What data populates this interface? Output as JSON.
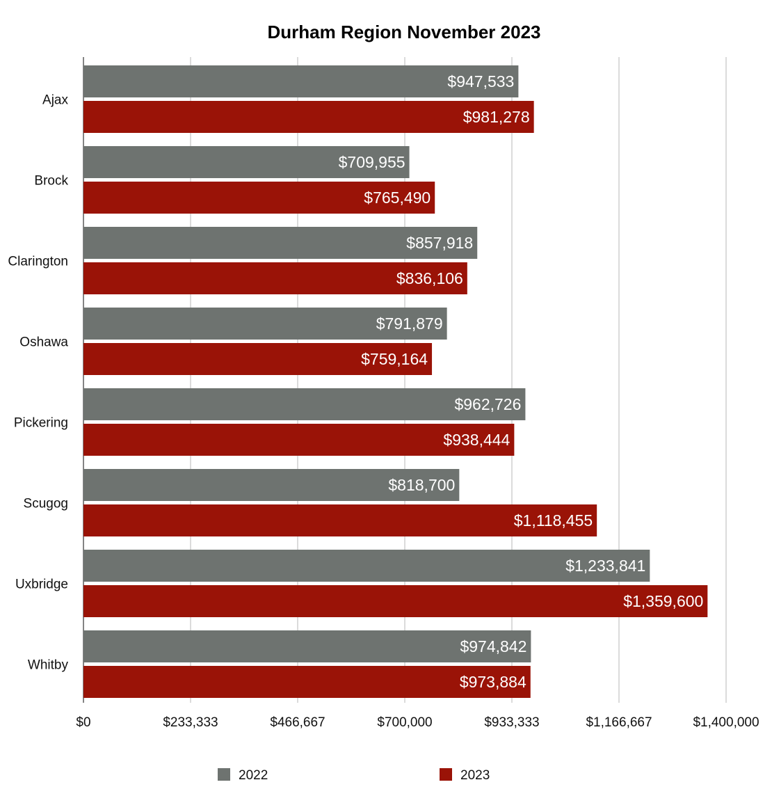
{
  "chart_data": {
    "type": "bar",
    "orientation": "horizontal",
    "title": "Durham Region November 2023",
    "categories": [
      "Ajax",
      "Brock",
      "Clarington",
      "Oshawa",
      "Pickering",
      "Scugog",
      "Uxbridge",
      "Whitby"
    ],
    "series": [
      {
        "name": "2022",
        "color": "#6e7370",
        "values": [
          947533,
          709955,
          857918,
          791879,
          962726,
          818700,
          1233841,
          974842
        ],
        "labels": [
          "$947,533",
          "$709,955",
          "$857,918",
          "$791,879",
          "$962,726",
          "$818,700",
          "$1,233,841",
          "$974,842"
        ]
      },
      {
        "name": "2023",
        "color": "#9a1307",
        "values": [
          981278,
          765490,
          836106,
          759164,
          938444,
          1118455,
          1359600,
          973884
        ],
        "labels": [
          "$981,278",
          "$765,490",
          "$836,106",
          "$759,164",
          "$938,444",
          "$1,118,455",
          "$1,359,600",
          "$973,884"
        ]
      }
    ],
    "xlim": [
      0,
      1400000
    ],
    "x_ticks": [
      0,
      233333,
      466667,
      700000,
      933333,
      1166667,
      1400000
    ],
    "x_tick_labels": [
      "$0",
      "$233,333",
      "$466,667",
      "$700,000",
      "$933,333",
      "$1,166,667",
      "$1,400,000"
    ],
    "grid": "vertical",
    "legend_position": "bottom",
    "gridline_color": "#c3c3c3"
  }
}
